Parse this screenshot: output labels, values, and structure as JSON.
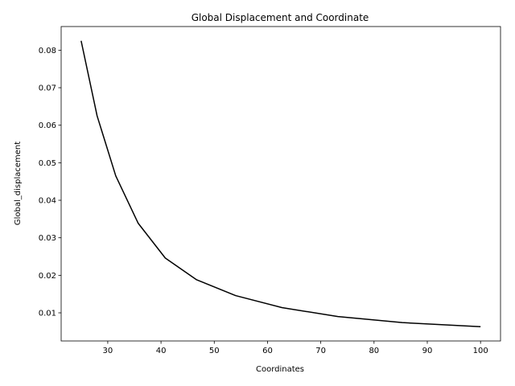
{
  "chart_data": {
    "type": "line",
    "title": "Global Displacement and Coordinate",
    "xlabel": "Coordinates",
    "ylabel": "Global_displacement",
    "xlim": [
      21.25,
      103.75
    ],
    "ylim": [
      0.0025,
      0.0863
    ],
    "xticks": [
      30,
      40,
      50,
      60,
      70,
      80,
      90,
      100
    ],
    "yticks": [
      0.01,
      0.02,
      0.03,
      0.04,
      0.05,
      0.06,
      0.07,
      0.08
    ],
    "grid": false,
    "series": [
      {
        "color": "#000000",
        "x": [
          25.0,
          28.0,
          31.5,
          35.7,
          40.8,
          46.7,
          54.0,
          62.7,
          73.2,
          85.3,
          100.0
        ],
        "y": [
          0.0825,
          0.0625,
          0.0465,
          0.0339,
          0.0246,
          0.0188,
          0.0146,
          0.0114,
          0.009,
          0.0074,
          0.0063
        ]
      }
    ]
  }
}
